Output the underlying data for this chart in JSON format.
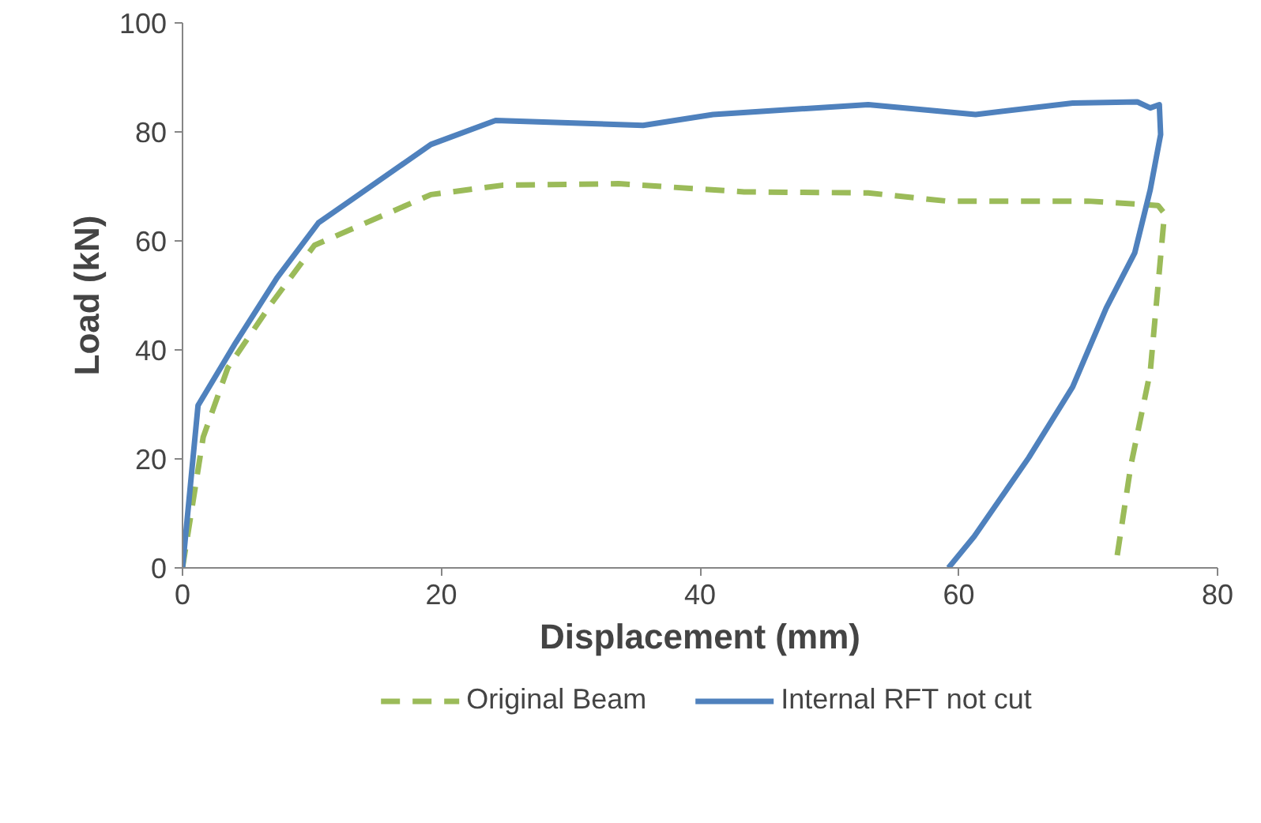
{
  "chart_data": {
    "type": "line",
    "xlabel": "Displacement (mm)",
    "ylabel": "Load (kN)",
    "xlim": [
      0,
      80
    ],
    "ylim": [
      0,
      100
    ],
    "xticks": [
      0,
      20,
      40,
      60,
      80
    ],
    "yticks": [
      0,
      20,
      40,
      60,
      80,
      100
    ],
    "grid": false,
    "legend": "bottom",
    "marker": "none",
    "series": [
      {
        "name": "Original Beam",
        "color": "#9bbb59",
        "line_style": "dashed",
        "x": [
          0,
          1.6,
          3.5,
          6.9,
          10.2,
          19.2,
          24.7,
          33.7,
          43.4,
          53,
          59.1,
          70,
          75.4,
          75.9,
          74.8,
          73.3,
          72.1
        ],
        "values": [
          0,
          24,
          36.7,
          48.6,
          59.2,
          68.5,
          70.2,
          70.5,
          69,
          68.8,
          67.3,
          67.3,
          66.5,
          65,
          36,
          18.8,
          0
        ]
      },
      {
        "name": "Internal RFT not cut",
        "color": "#4f81bd",
        "line_style": "solid",
        "x": [
          0,
          1.2,
          4.1,
          7.3,
          10.5,
          19.2,
          24.2,
          35.6,
          41,
          53,
          61.3,
          68.8,
          73.8,
          74.8,
          75.5,
          75.6,
          74.8,
          73.6,
          71.4,
          68.8,
          65.4,
          61.2,
          59.2
        ],
        "values": [
          0,
          29.8,
          41.3,
          53.2,
          63.3,
          77.7,
          82.1,
          81.2,
          83.2,
          85,
          83.2,
          85.3,
          85.5,
          84.4,
          85,
          79.5,
          69.4,
          57.8,
          47.7,
          33.2,
          20.2,
          5.8,
          0
        ]
      }
    ]
  }
}
